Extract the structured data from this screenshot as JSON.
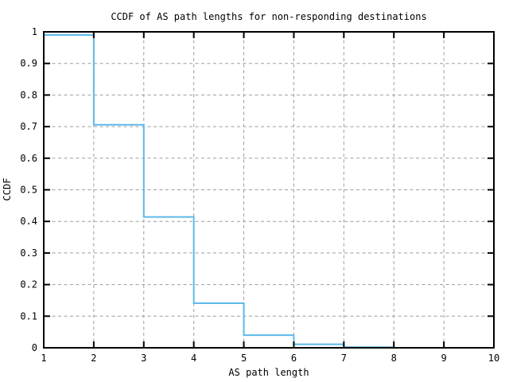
{
  "chart_data": {
    "type": "line",
    "style": "step-post",
    "title": "CCDF of AS path lengths for non-responding destinations",
    "xlabel": "AS path length",
    "ylabel": "CCDF",
    "xlim": [
      1,
      10
    ],
    "ylim": [
      0,
      1
    ],
    "grid": true,
    "legend": "none",
    "colors": {
      "line": "#5db9e9",
      "grid": "#9e9e9e",
      "axis": "#000000",
      "background": "#ffffff"
    },
    "x_ticks": [
      {
        "v": 1,
        "label": "1"
      },
      {
        "v": 2,
        "label": "2"
      },
      {
        "v": 3,
        "label": "3"
      },
      {
        "v": 4,
        "label": "4"
      },
      {
        "v": 5,
        "label": "5"
      },
      {
        "v": 6,
        "label": "6"
      },
      {
        "v": 7,
        "label": "7"
      },
      {
        "v": 8,
        "label": "8"
      },
      {
        "v": 9,
        "label": "9"
      },
      {
        "v": 10,
        "label": "10"
      }
    ],
    "y_ticks": [
      {
        "v": 0,
        "label": "0"
      },
      {
        "v": 0.1,
        "label": "0.1"
      },
      {
        "v": 0.2,
        "label": "0.2"
      },
      {
        "v": 0.3,
        "label": "0.3"
      },
      {
        "v": 0.4,
        "label": "0.4"
      },
      {
        "v": 0.5,
        "label": "0.5"
      },
      {
        "v": 0.6,
        "label": "0.6"
      },
      {
        "v": 0.7,
        "label": "0.7"
      },
      {
        "v": 0.8,
        "label": "0.8"
      },
      {
        "v": 0.9,
        "label": "0.9"
      },
      {
        "v": 1,
        "label": "1"
      }
    ],
    "series": [
      {
        "name": "ccdf",
        "color": "#5db9e9",
        "x": [
          1,
          2,
          3,
          4,
          5,
          6,
          7,
          8
        ],
        "y": [
          0.99,
          0.706,
          0.414,
          0.141,
          0.04,
          0.011,
          0.002,
          0
        ]
      }
    ]
  }
}
